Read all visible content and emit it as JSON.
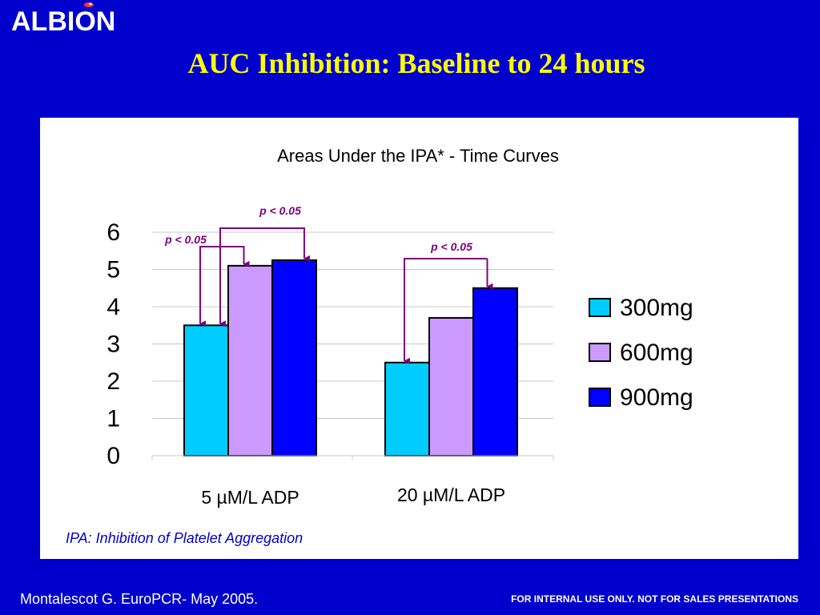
{
  "header": {
    "logo_text": "ALBION",
    "title": "AUC Inhibition: Baseline to 24 hours"
  },
  "colors": {
    "background": "#0000cc",
    "title": "#ffff00",
    "bar_300mg": "#00ccff",
    "bar_600mg": "#cc99ff",
    "bar_900mg": "#0000ff",
    "annotation": "#800080",
    "footnote": "#0000cc"
  },
  "chart_data": {
    "type": "bar",
    "title": "Areas Under the IPA* - Time Curves",
    "categories": [
      "5 µM/L ADP",
      "20 µM/L ADP"
    ],
    "series": [
      {
        "name": "300mg",
        "values": [
          3.5,
          2.5
        ]
      },
      {
        "name": "600mg",
        "values": [
          5.1,
          3.7
        ]
      },
      {
        "name": "900mg",
        "values": [
          5.25,
          4.5
        ]
      }
    ],
    "ylim": [
      0,
      6
    ],
    "yticks": [
      "0",
      "1",
      "2",
      "3",
      "4",
      "5",
      "6"
    ],
    "xlabel": "",
    "ylabel": "",
    "grid": true,
    "legend": "right",
    "annotations": [
      "p < 0.05",
      "p < 0.05",
      "p < 0.05"
    ]
  },
  "footnote": "IPA: Inhibition of Platelet Aggregation",
  "footer": {
    "citation": "Montalescot G. EuroPCR- May 2005.",
    "notice": "FOR INTERNAL USE ONLY. NOT FOR SALES PRESENTATIONS"
  }
}
